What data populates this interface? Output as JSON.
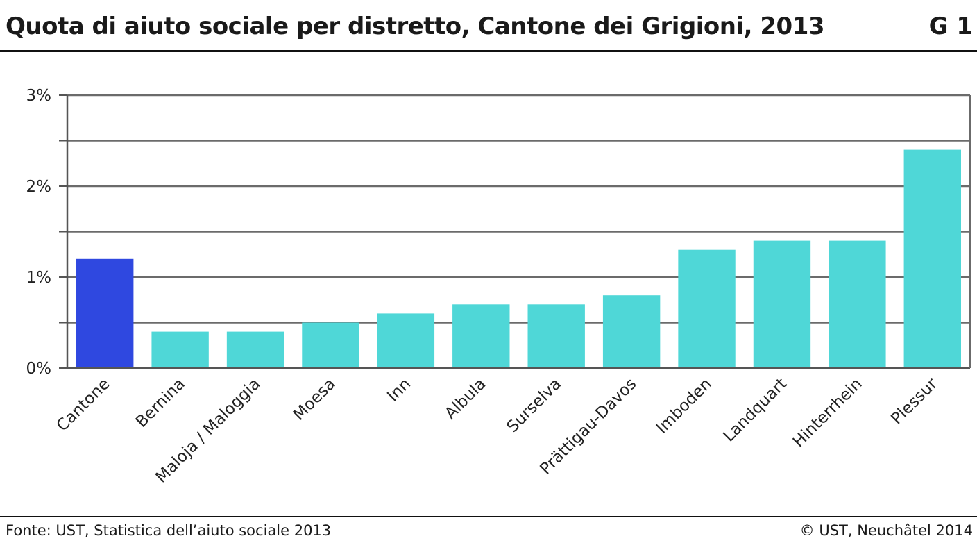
{
  "header": {
    "title": "Quota di aiuto sociale per distretto, Cantone dei Grigioni, 2013",
    "figure_id": "G 1"
  },
  "footer": {
    "source": "Fonte: UST, Statistica dell’aiuto sociale 2013",
    "copyright": "© UST, Neuchâtel 2014"
  },
  "colors": {
    "highlight_bar": "#2f48e0",
    "bar": "#4fd7d7",
    "grid": "#6b6b6b",
    "axis": "#555555"
  },
  "chart_data": {
    "type": "bar",
    "title": "Quota di aiuto sociale per distretto, Cantone dei Grigioni, 2013",
    "xlabel": "",
    "ylabel": "",
    "categories": [
      "Cantone",
      "Bernina",
      "Maloja / Maloggia",
      "Moesa",
      "Inn",
      "Albula",
      "Surselva",
      "Prättigau-Davos",
      "Imboden",
      "Landquart",
      "Hinterrhein",
      "Plessur"
    ],
    "values": [
      1.2,
      0.4,
      0.4,
      0.5,
      0.6,
      0.7,
      0.7,
      0.8,
      1.3,
      1.4,
      1.4,
      2.4
    ],
    "highlighted_category": "Cantone",
    "ylim": [
      0,
      3
    ],
    "yticks": [
      {
        "value": 0,
        "label": "0%"
      },
      {
        "value": 1,
        "label": "1%"
      },
      {
        "value": 2,
        "label": "2%"
      },
      {
        "value": 3,
        "label": "3%"
      }
    ],
    "gridlines": [
      0.5,
      1,
      1.5,
      2,
      2.5,
      3
    ],
    "grid": true,
    "legend": "none"
  }
}
